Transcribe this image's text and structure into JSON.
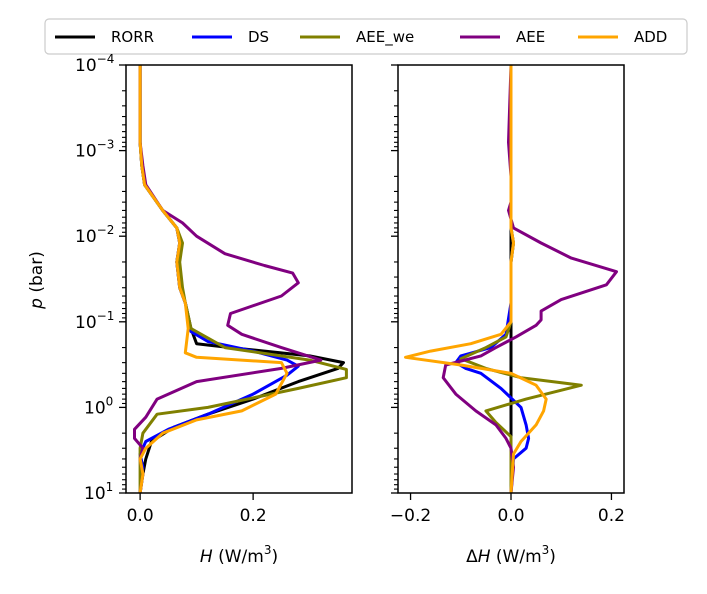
{
  "chart_data": {
    "type": "line",
    "legend": {
      "placement": "top-center",
      "entries": [
        {
          "name": "RORR",
          "color": "#000000"
        },
        {
          "name": "DS",
          "color": "#0000ff"
        },
        {
          "name": "AEE_we",
          "color": "#808000"
        },
        {
          "name": "AEE",
          "color": "#800080"
        },
        {
          "name": "ADD",
          "color": "#ffa500"
        }
      ]
    },
    "ylabel": "p (bar)",
    "yscale": "log",
    "ylim": [
      10,
      0.0001
    ],
    "yticks": [
      {
        "value": 0.0001,
        "base": "10",
        "exp": "−4"
      },
      {
        "value": 0.001,
        "base": "10",
        "exp": "−3"
      },
      {
        "value": 0.01,
        "base": "10",
        "exp": "−2"
      },
      {
        "value": 0.1,
        "base": "10",
        "exp": "−1"
      },
      {
        "value": 1,
        "base": "10",
        "exp": "0"
      },
      {
        "value": 10,
        "base": "10",
        "exp": "1"
      }
    ],
    "panels": [
      {
        "id": "left",
        "xlabel": "H (W/m3)",
        "xlabel_parts": {
          "sym": "H",
          "unit": " (W/m",
          "sup": "3",
          "close": ")"
        },
        "xlim": [
          -0.025,
          0.375
        ],
        "xticks": [
          {
            "value": 0.0,
            "label": "0.0"
          },
          {
            "value": 0.2,
            "label": "0.2"
          }
        ],
        "series": [
          {
            "name": "RORR",
            "color": "#000000",
            "points": [
              [
                0,
                0.0001
              ],
              [
                0,
                0.0008
              ],
              [
                0.003,
                0.0015
              ],
              [
                0.008,
                0.0025
              ],
              [
                0.04,
                0.005
              ],
              [
                0.065,
                0.008
              ],
              [
                0.07,
                0.012
              ],
              [
                0.065,
                0.02
              ],
              [
                0.07,
                0.04
              ],
              [
                0.08,
                0.06
              ],
              [
                0.09,
                0.12
              ],
              [
                0.1,
                0.18
              ],
              [
                0.16,
                0.2
              ],
              [
                0.3,
                0.25
              ],
              [
                0.36,
                0.3
              ],
              [
                0.35,
                0.35
              ],
              [
                0.28,
                0.5
              ],
              [
                0.2,
                0.8
              ],
              [
                0.12,
                1.2
              ],
              [
                0.06,
                1.7
              ],
              [
                0.02,
                2.5
              ],
              [
                0.01,
                4
              ],
              [
                0.005,
                6
              ],
              [
                0,
                10
              ]
            ]
          },
          {
            "name": "DS",
            "color": "#0000ff",
            "points": [
              [
                0,
                0.0001
              ],
              [
                0,
                0.0008
              ],
              [
                0.003,
                0.0015
              ],
              [
                0.008,
                0.0025
              ],
              [
                0.04,
                0.005
              ],
              [
                0.065,
                0.008
              ],
              [
                0.07,
                0.012
              ],
              [
                0.065,
                0.02
              ],
              [
                0.07,
                0.04
              ],
              [
                0.08,
                0.06
              ],
              [
                0.09,
                0.13
              ],
              [
                0.12,
                0.17
              ],
              [
                0.2,
                0.22
              ],
              [
                0.26,
                0.28
              ],
              [
                0.28,
                0.33
              ],
              [
                0.26,
                0.42
              ],
              [
                0.2,
                0.7
              ],
              [
                0.12,
                1.2
              ],
              [
                0.05,
                1.8
              ],
              [
                0.01,
                2.5
              ],
              [
                0,
                3.5
              ],
              [
                0.005,
                5
              ],
              [
                0,
                10
              ]
            ]
          },
          {
            "name": "AEE_we",
            "color": "#808000",
            "points": [
              [
                0,
                0.0001
              ],
              [
                0,
                0.0008
              ],
              [
                0.003,
                0.0015
              ],
              [
                0.008,
                0.0025
              ],
              [
                0.04,
                0.005
              ],
              [
                0.065,
                0.008
              ],
              [
                0.075,
                0.012
              ],
              [
                0.07,
                0.02
              ],
              [
                0.075,
                0.04
              ],
              [
                0.08,
                0.06
              ],
              [
                0.09,
                0.12
              ],
              [
                0.15,
                0.2
              ],
              [
                0.3,
                0.28
              ],
              [
                0.365,
                0.36
              ],
              [
                0.365,
                0.45
              ],
              [
                0.28,
                0.6
              ],
              [
                0.12,
                1.0
              ],
              [
                0.03,
                1.2
              ],
              [
                0.005,
                2
              ],
              [
                0,
                3
              ],
              [
                0,
                10
              ]
            ]
          },
          {
            "name": "AEE",
            "color": "#800080",
            "points": [
              [
                0,
                0.0001
              ],
              [
                0,
                0.0008
              ],
              [
                0.005,
                0.0015
              ],
              [
                0.01,
                0.0025
              ],
              [
                0.04,
                0.005
              ],
              [
                0.075,
                0.007
              ],
              [
                0.1,
                0.01
              ],
              [
                0.15,
                0.016
              ],
              [
                0.22,
                0.022
              ],
              [
                0.27,
                0.027
              ],
              [
                0.28,
                0.035
              ],
              [
                0.25,
                0.05
              ],
              [
                0.16,
                0.08
              ],
              [
                0.155,
                0.11
              ],
              [
                0.18,
                0.14
              ],
              [
                0.25,
                0.2
              ],
              [
                0.32,
                0.28
              ],
              [
                0.25,
                0.35
              ],
              [
                0.1,
                0.5
              ],
              [
                0.03,
                0.8
              ],
              [
                0.01,
                1.3
              ],
              [
                -0.01,
                1.8
              ],
              [
                -0.01,
                2.3
              ],
              [
                0.005,
                3
              ],
              [
                0,
                4
              ],
              [
                0.005,
                6
              ],
              [
                0,
                10
              ]
            ]
          },
          {
            "name": "ADD",
            "color": "#ffa500",
            "points": [
              [
                0,
                0.0001
              ],
              [
                0,
                0.0008
              ],
              [
                0.003,
                0.0015
              ],
              [
                0.008,
                0.0025
              ],
              [
                0.04,
                0.005
              ],
              [
                0.065,
                0.008
              ],
              [
                0.07,
                0.012
              ],
              [
                0.065,
                0.02
              ],
              [
                0.07,
                0.04
              ],
              [
                0.08,
                0.06
              ],
              [
                0.085,
                0.12
              ],
              [
                0.08,
                0.23
              ],
              [
                0.1,
                0.26
              ],
              [
                0.25,
                0.3
              ],
              [
                0.26,
                0.4
              ],
              [
                0.24,
                0.7
              ],
              [
                0.18,
                1.1
              ],
              [
                0.1,
                1.4
              ],
              [
                0.04,
                2
              ],
              [
                0.01,
                3
              ],
              [
                0,
                4
              ],
              [
                0.005,
                6
              ],
              [
                0,
                10
              ]
            ]
          }
        ]
      },
      {
        "id": "right",
        "xlabel": "ΔH (W/m3)",
        "xlabel_parts": {
          "sym": "H",
          "prefix": "Δ",
          "unit": " (W/m",
          "sup": "3",
          "close": ")"
        },
        "xlim": [
          -0.225,
          0.225
        ],
        "xticks": [
          {
            "value": -0.2,
            "label": "−0.2"
          },
          {
            "value": 0.0,
            "label": "0.0"
          },
          {
            "value": 0.2,
            "label": "0.2"
          }
        ],
        "series": [
          {
            "name": "RORR",
            "color": "#000000",
            "points": [
              [
                0,
                0.0001
              ],
              [
                0,
                0.01
              ],
              [
                0,
                0.1
              ],
              [
                0,
                0.25
              ],
              [
                0,
                1
              ],
              [
                0,
                10
              ]
            ]
          },
          {
            "name": "DS",
            "color": "#0000ff",
            "points": [
              [
                0,
                0.0001
              ],
              [
                0,
                0.008
              ],
              [
                0.005,
                0.012
              ],
              [
                0,
                0.02
              ],
              [
                0,
                0.06
              ],
              [
                -0.01,
                0.14
              ],
              [
                -0.04,
                0.2
              ],
              [
                -0.1,
                0.25
              ],
              [
                -0.11,
                0.3
              ],
              [
                -0.09,
                0.35
              ],
              [
                -0.06,
                0.4
              ],
              [
                -0.02,
                0.6
              ],
              [
                0.02,
                1.0
              ],
              [
                0.03,
                1.6
              ],
              [
                0.035,
                2.3
              ],
              [
                0.03,
                3
              ],
              [
                0.005,
                4
              ],
              [
                0,
                10
              ]
            ]
          },
          {
            "name": "AEE_we",
            "color": "#808000",
            "points": [
              [
                0,
                0.0001
              ],
              [
                0,
                0.008
              ],
              [
                0.005,
                0.012
              ],
              [
                0,
                0.02
              ],
              [
                0,
                0.1
              ],
              [
                -0.01,
                0.15
              ],
              [
                -0.05,
                0.2
              ],
              [
                -0.1,
                0.27
              ],
              [
                -0.05,
                0.35
              ],
              [
                0.02,
                0.45
              ],
              [
                0.14,
                0.55
              ],
              [
                0.03,
                0.8
              ],
              [
                -0.05,
                1.1
              ],
              [
                -0.03,
                1.5
              ],
              [
                0,
                2.2
              ],
              [
                0,
                10
              ]
            ]
          },
          {
            "name": "AEE",
            "color": "#800080",
            "points": [
              [
                0,
                0.0001
              ],
              [
                -0.005,
                0.0008
              ],
              [
                0,
                0.002
              ],
              [
                0,
                0.004
              ],
              [
                -0.005,
                0.005
              ],
              [
                0.005,
                0.008
              ],
              [
                0.06,
                0.012
              ],
              [
                0.12,
                0.018
              ],
              [
                0.21,
                0.026
              ],
              [
                0.19,
                0.037
              ],
              [
                0.1,
                0.055
              ],
              [
                0.06,
                0.075
              ],
              [
                0.06,
                0.095
              ],
              [
                0.05,
                0.11
              ],
              [
                0.01,
                0.15
              ],
              [
                -0.03,
                0.2
              ],
              [
                -0.06,
                0.25
              ],
              [
                -0.13,
                0.32
              ],
              [
                -0.135,
                0.45
              ],
              [
                -0.11,
                0.7
              ],
              [
                -0.07,
                1.1
              ],
              [
                -0.03,
                1.6
              ],
              [
                -0.01,
                2.3
              ],
              [
                0,
                3
              ],
              [
                0.005,
                5
              ],
              [
                0,
                10
              ]
            ]
          },
          {
            "name": "ADD",
            "color": "#ffa500",
            "points": [
              [
                0,
                0.0001
              ],
              [
                0,
                0.008
              ],
              [
                0.005,
                0.012
              ],
              [
                0,
                0.02
              ],
              [
                0,
                0.1
              ],
              [
                -0.02,
                0.14
              ],
              [
                -0.08,
                0.18
              ],
              [
                -0.16,
                0.22
              ],
              [
                -0.21,
                0.26
              ],
              [
                -0.1,
                0.32
              ],
              [
                0,
                0.4
              ],
              [
                0.05,
                0.55
              ],
              [
                0.07,
                0.8
              ],
              [
                0.065,
                1.1
              ],
              [
                0.05,
                1.6
              ],
              [
                0.02,
                2.5
              ],
              [
                0.005,
                3.5
              ],
              [
                0,
                10
              ]
            ]
          }
        ]
      }
    ]
  }
}
